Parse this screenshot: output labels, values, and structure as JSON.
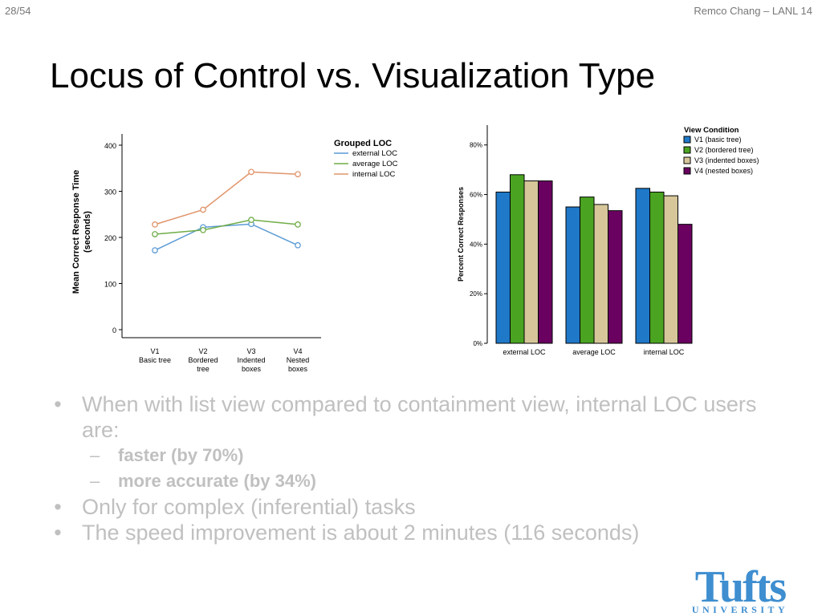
{
  "header": {
    "page_number": "28/54",
    "credit": "Remco Chang – LANL 14"
  },
  "slide": {
    "title": "Locus of Control vs. Visualization Type"
  },
  "bullets": [
    {
      "text": "When with list view compared to containment view, internal LOC users are:"
    },
    {
      "text": "Only for complex (inferential) tasks"
    },
    {
      "text": "The speed improvement is about 2 minutes (116 seconds)"
    }
  ],
  "subbullets": [
    {
      "text": "faster (by 70%)"
    },
    {
      "text": "more accurate (by 34%)"
    }
  ],
  "logo": {
    "name": "Tufts",
    "subtitle": "UNIVERSITY",
    "color": "#3e8ed0"
  },
  "chart_data": [
    {
      "type": "line",
      "ylabel": [
        "Mean Correct Response Time",
        "(seconds)"
      ],
      "xlabel": "",
      "ylim": [
        0,
        400
      ],
      "yticks": [
        0,
        100,
        200,
        300,
        400
      ],
      "categories": [
        [
          "V1",
          "Basic tree"
        ],
        [
          "V2",
          "Bordered",
          "tree"
        ],
        [
          "V3",
          "Indented",
          "boxes"
        ],
        [
          "V4",
          "Nested",
          "boxes"
        ]
      ],
      "legend_title": "Grouped LOC",
      "legend_position": "top-right",
      "series": [
        {
          "name": "external LOC",
          "color": "#5b9bd5",
          "values": [
            172,
            222,
            229,
            183
          ]
        },
        {
          "name": "average LOC",
          "color": "#70ad47",
          "values": [
            207,
            216,
            238,
            228
          ]
        },
        {
          "name": "internal LOC",
          "color": "#e0956b",
          "values": [
            228,
            260,
            342,
            337
          ]
        }
      ]
    },
    {
      "type": "bar",
      "ylabel": "Percent Correct Responses",
      "ylim": [
        0,
        88
      ],
      "yticks": [
        0,
        20,
        40,
        60,
        80
      ],
      "ytick_labels": [
        "0%",
        "20%",
        "40%",
        "60%",
        "80%"
      ],
      "categories": [
        "external LOC",
        "average LOC",
        "internal LOC"
      ],
      "legend_title": "View Condition",
      "legend_position": "top-right",
      "series": [
        {
          "name": "V1 (basic tree)",
          "color": "#1f78c8",
          "values": [
            61,
            55,
            62.5
          ]
        },
        {
          "name": "V2 (bordered tree)",
          "color": "#4aa321",
          "values": [
            68,
            59,
            61
          ]
        },
        {
          "name": "V3 (indented boxes)",
          "color": "#d6c69a",
          "values": [
            65.5,
            56,
            59.5
          ]
        },
        {
          "name": "V4 (nested boxes)",
          "color": "#6a0060",
          "values": [
            65.5,
            53.5,
            48
          ]
        }
      ]
    }
  ]
}
